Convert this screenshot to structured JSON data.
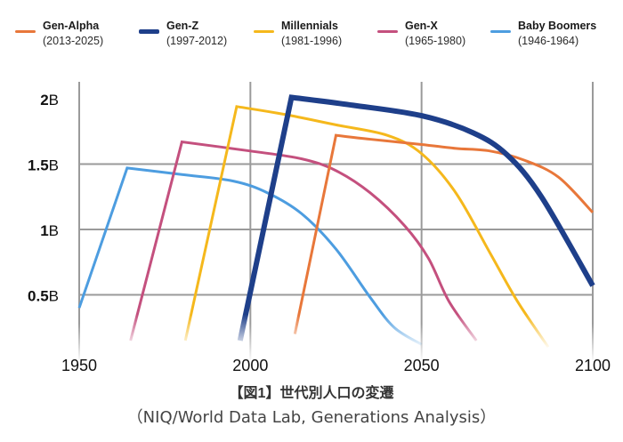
{
  "chart_data": {
    "type": "line",
    "title": "【図1】世代別人口の変遷",
    "subtitle": "（NIQ/World Data Lab, Generations Analysis）",
    "xlabel": "",
    "ylabel": "",
    "xlim": [
      1950,
      2100
    ],
    "ylim": [
      0,
      2.05
    ],
    "x_ticks": [
      1950,
      2000,
      2050,
      2100
    ],
    "x_tick_labels": [
      "1950",
      "2000",
      "2050",
      "2100"
    ],
    "y_ticks": [
      {
        "value": 0.5,
        "num": "0.5",
        "unit": "B"
      },
      {
        "value": 1.0,
        "num": "1",
        "unit": "B"
      },
      {
        "value": 1.5,
        "num": "1.5",
        "unit": "B"
      },
      {
        "value": 2.0,
        "num": "2",
        "unit": "B"
      }
    ],
    "grid": true,
    "legend_position": "top",
    "series": [
      {
        "name": "Gen-Alpha",
        "range": "(2013-2025)",
        "color": "#E8773A",
        "weight": "normal",
        "points": [
          [
            2013,
            0.2
          ],
          [
            2025,
            1.72
          ],
          [
            2035,
            1.69
          ],
          [
            2050,
            1.65
          ],
          [
            2060,
            1.62
          ],
          [
            2070,
            1.6
          ],
          [
            2080,
            1.53
          ],
          [
            2090,
            1.4
          ],
          [
            2100,
            1.13
          ]
        ]
      },
      {
        "name": "Gen-Z",
        "range": "(1997-2012)",
        "color": "#1E3F8A",
        "weight": "bold",
        "points": [
          [
            1997,
            0.15
          ],
          [
            2012,
            2.01
          ],
          [
            2030,
            1.95
          ],
          [
            2050,
            1.87
          ],
          [
            2065,
            1.74
          ],
          [
            2075,
            1.57
          ],
          [
            2085,
            1.25
          ],
          [
            2100,
            0.57
          ]
        ]
      },
      {
        "name": "Millennials",
        "range": "(1981-1996)",
        "color": "#F5B81C",
        "weight": "normal",
        "points": [
          [
            1981,
            0.15
          ],
          [
            1996,
            1.94
          ],
          [
            2010,
            1.88
          ],
          [
            2025,
            1.8
          ],
          [
            2040,
            1.72
          ],
          [
            2050,
            1.58
          ],
          [
            2060,
            1.28
          ],
          [
            2070,
            0.82
          ],
          [
            2078,
            0.45
          ],
          [
            2087,
            0.1
          ]
        ]
      },
      {
        "name": "Gen-X",
        "range": "(1965-1980)",
        "color": "#C4507E",
        "weight": "normal",
        "points": [
          [
            1965,
            0.15
          ],
          [
            1980,
            1.67
          ],
          [
            2000,
            1.6
          ],
          [
            2015,
            1.54
          ],
          [
            2025,
            1.45
          ],
          [
            2035,
            1.28
          ],
          [
            2045,
            1.03
          ],
          [
            2052,
            0.78
          ],
          [
            2058,
            0.45
          ],
          [
            2066,
            0.15
          ]
        ]
      },
      {
        "name": "Baby Boomers",
        "range": "(1946-1964)",
        "color": "#4D9DE0",
        "weight": "normal",
        "points": [
          [
            1950,
            0.4
          ],
          [
            1964,
            1.47
          ],
          [
            1980,
            1.42
          ],
          [
            1995,
            1.37
          ],
          [
            2005,
            1.28
          ],
          [
            2015,
            1.12
          ],
          [
            2025,
            0.85
          ],
          [
            2035,
            0.48
          ],
          [
            2042,
            0.25
          ],
          [
            2050,
            0.12
          ]
        ]
      }
    ]
  }
}
